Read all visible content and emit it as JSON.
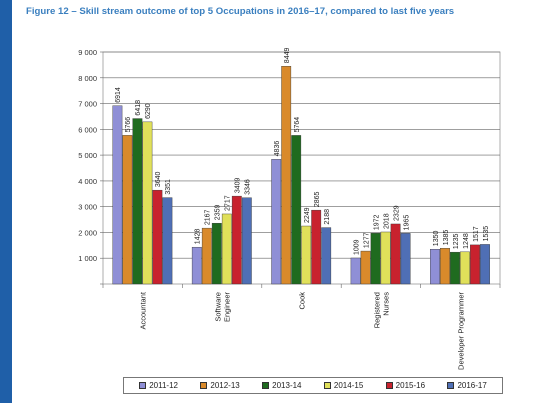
{
  "figure_title": "Figure 12 – Skill stream outcome of top 5 Occupations in 2016–17, compared to last five years",
  "chart_data": {
    "type": "bar",
    "categories": [
      "Accountant",
      "Software Engineer",
      "Cook",
      "Registered Nurses",
      "Developer Programmer"
    ],
    "ylim": [
      0,
      9000
    ],
    "yticks": [
      "",
      "1 000",
      "2 000",
      "3 000",
      "4 000",
      "5 000",
      "6 000",
      "7 000",
      "8 000",
      "9 000"
    ],
    "grid": "horizontal",
    "legend_position": "bottom",
    "series": [
      {
        "name": "2011-12",
        "color": "#8f8fd6",
        "values": [
          6914,
          1428,
          4836,
          1009,
          1350
        ]
      },
      {
        "name": "2012-13",
        "color": "#d98a2b",
        "values": [
          5766,
          2167,
          8449,
          1277,
          1385
        ]
      },
      {
        "name": "2013-14",
        "color": "#1f6b1f",
        "values": [
          6418,
          2359,
          5764,
          1972,
          1235
        ]
      },
      {
        "name": "2014-15",
        "color": "#e0e05a",
        "values": [
          6290,
          2717,
          2249,
          2018,
          1248
        ]
      },
      {
        "name": "2015-16",
        "color": "#c8222e",
        "values": [
          3640,
          3409,
          2865,
          2329,
          1517
        ]
      },
      {
        "name": "2016-17",
        "color": "#4f6fb5",
        "values": [
          3351,
          3346,
          2188,
          1965,
          1535
        ]
      }
    ]
  }
}
